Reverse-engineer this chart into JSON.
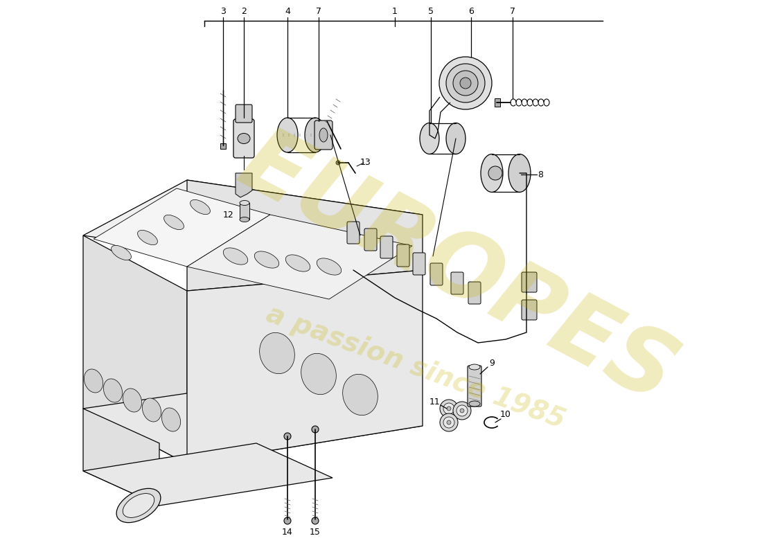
{
  "bg_color": "#ffffff",
  "watermark_text1": "EUROPES",
  "watermark_text2": "a passion since 1985",
  "watermark_color": "#c8b400",
  "watermark_alpha": 0.25,
  "lw": 0.9,
  "label_fs": 9
}
